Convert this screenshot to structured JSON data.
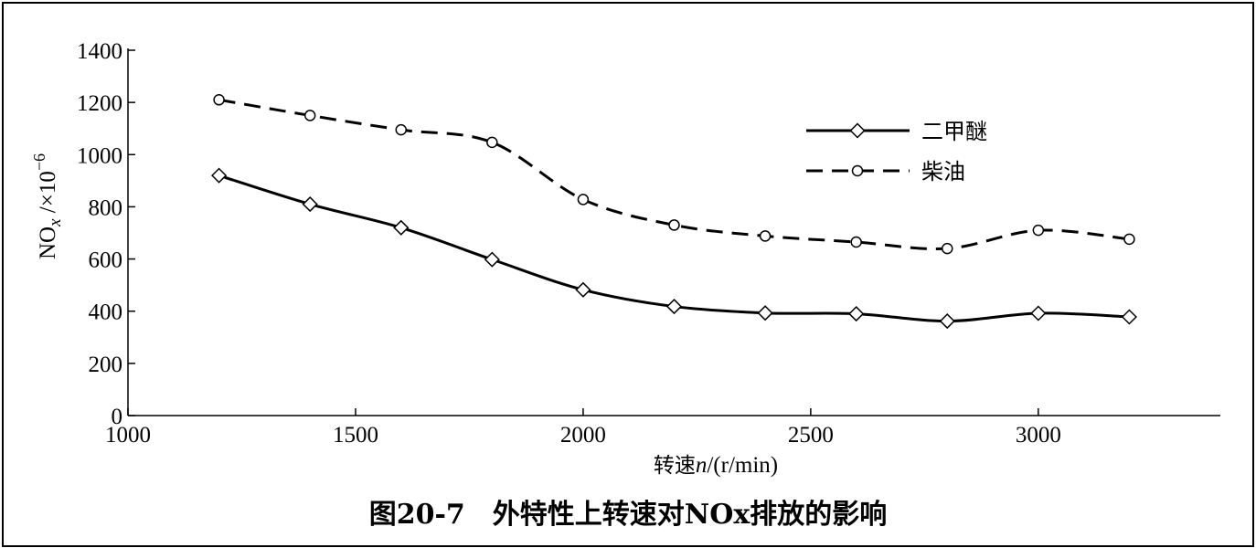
{
  "chart_data": {
    "type": "line",
    "x": [
      1200,
      1400,
      1600,
      1800,
      2000,
      2200,
      2400,
      2600,
      2800,
      3000,
      3200
    ],
    "series": [
      {
        "name": "二甲醚",
        "values": [
          920,
          810,
          720,
          598,
          482,
          418,
          393,
          390,
          362,
          392,
          378
        ],
        "line_style": "solid",
        "marker": "diamond"
      },
      {
        "name": "柴油",
        "values": [
          1210,
          1150,
          1095,
          1047,
          828,
          730,
          688,
          665,
          640,
          710,
          676
        ],
        "line_style": "dashed",
        "marker": "circle"
      }
    ],
    "xlim": [
      1000,
      3400
    ],
    "ylim": [
      0,
      1400
    ],
    "xticks": [
      1000,
      1500,
      2000,
      2500,
      3000
    ],
    "yticks": [
      0,
      200,
      400,
      600,
      800,
      1000,
      1200,
      1400
    ],
    "xlabel": "转速n/(r/min)",
    "ylabel": "NOx /×10⁻⁶",
    "legend_position": "upper-right",
    "grid": false,
    "color": "#000000"
  },
  "caption": "图20-7　外特性上转速对NOx排放的影响"
}
